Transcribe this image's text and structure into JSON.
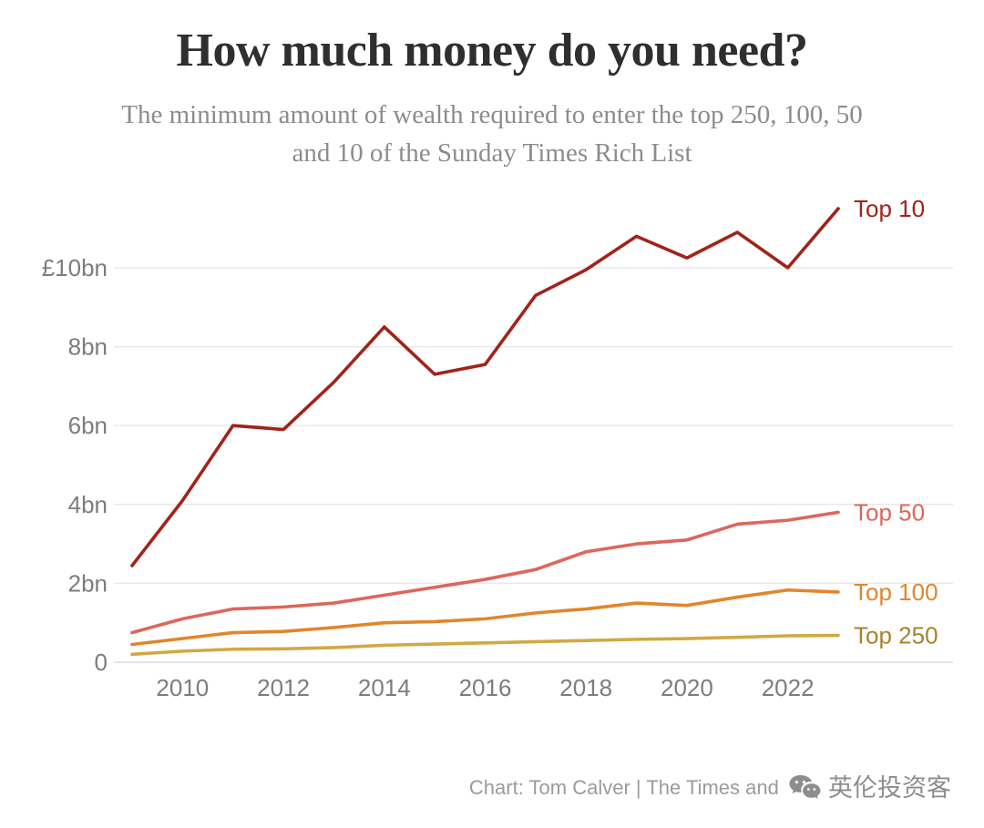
{
  "footer": {
    "credit": "Chart: Tom Calver | The Times and The Sunday Times",
    "watermark": "英伦投资客"
  },
  "chart_data": {
    "type": "line",
    "title": "How much money do you need?",
    "subtitle": "The minimum amount of wealth required to enter the top 250, 100, 50 and 10 of the Sunday Times Rich List",
    "unit": "£bn",
    "x": [
      2009,
      2010,
      2011,
      2012,
      2013,
      2014,
      2015,
      2016,
      2017,
      2018,
      2019,
      2020,
      2021,
      2022,
      2023
    ],
    "x_ticks": [
      2010,
      2012,
      2014,
      2016,
      2018,
      2020,
      2022
    ],
    "y_ticks": [
      {
        "value": 0,
        "label": "0"
      },
      {
        "value": 2,
        "label": "2bn"
      },
      {
        "value": 4,
        "label": "4bn"
      },
      {
        "value": 6,
        "label": "6bn"
      },
      {
        "value": 8,
        "label": "8bn"
      },
      {
        "value": 10,
        "label": "£10bn"
      }
    ],
    "ylim": [
      0,
      11.8
    ],
    "grid": true,
    "legend_position": "end-of-line",
    "colors": {
      "grid": "#e9e9e9",
      "grid_zero": "#dcdcdc",
      "axis_text": "#7d7d7d"
    },
    "series": [
      {
        "name": "Top 10",
        "color": "#a1231a",
        "values": [
          2.45,
          4.1,
          6.0,
          5.9,
          7.1,
          8.5,
          7.3,
          7.55,
          9.3,
          9.95,
          10.8,
          10.25,
          10.9,
          10.0,
          11.5
        ]
      },
      {
        "name": "Top 50",
        "color": "#dc675c",
        "values": [
          0.75,
          1.1,
          1.35,
          1.4,
          1.5,
          1.7,
          1.9,
          2.1,
          2.35,
          2.8,
          3.0,
          3.1,
          3.5,
          3.6,
          3.8
        ]
      },
      {
        "name": "Top 100",
        "color": "#e0862c",
        "values": [
          0.45,
          0.6,
          0.75,
          0.78,
          0.88,
          1.0,
          1.03,
          1.1,
          1.25,
          1.35,
          1.5,
          1.44,
          1.65,
          1.83,
          1.78
        ]
      },
      {
        "name": "Top 250",
        "color": "#d1a943",
        "label_color": "#a8832c",
        "values": [
          0.2,
          0.28,
          0.33,
          0.34,
          0.37,
          0.43,
          0.46,
          0.49,
          0.52,
          0.55,
          0.58,
          0.6,
          0.63,
          0.67,
          0.68
        ]
      }
    ]
  }
}
